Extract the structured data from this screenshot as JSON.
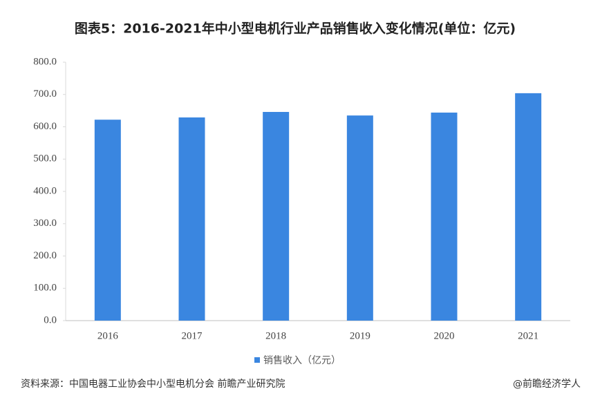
{
  "chart_data": {
    "type": "bar",
    "title": "图表5：2016-2021年中小型电机行业产品销售收入变化情况(单位：亿元)",
    "categories": [
      "2016",
      "2017",
      "2018",
      "2019",
      "2020",
      "2021"
    ],
    "series": [
      {
        "name": "销售收入（亿元）",
        "color": "#3a86e0",
        "values": [
          622,
          629,
          646,
          635,
          644,
          704
        ]
      }
    ],
    "ylim": [
      0,
      800
    ],
    "yticks": [
      {
        "value": 0,
        "label": "0.0"
      },
      {
        "value": 100,
        "label": "100.0"
      },
      {
        "value": 200,
        "label": "200.0"
      },
      {
        "value": 300,
        "label": "300.0"
      },
      {
        "value": 400,
        "label": "400.0"
      },
      {
        "value": 500,
        "label": "500.0"
      },
      {
        "value": 600,
        "label": "600.0"
      },
      {
        "value": 700,
        "label": "700.0"
      },
      {
        "value": 800,
        "label": "800.0"
      }
    ],
    "grid": false,
    "legend": "bottom",
    "source": "资料来源：中国电器工业协会中小型电机分会 前瞻产业研究院",
    "credit": "@前瞻经济学人"
  }
}
